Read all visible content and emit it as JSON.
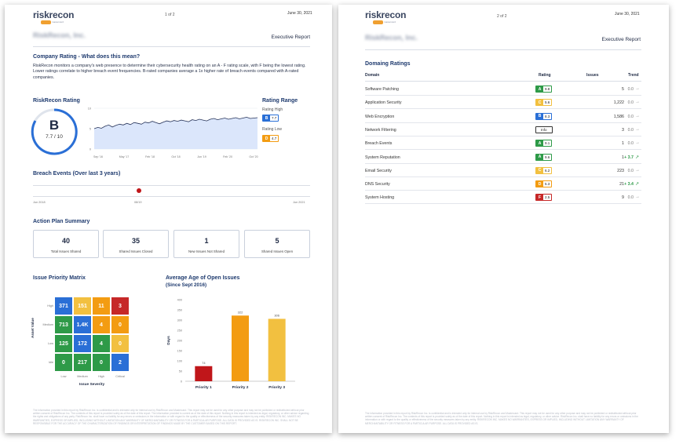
{
  "colors": {
    "navy": "#1e3a6e",
    "grade_a": "#2e9a48",
    "grade_b": "#2a6fd6",
    "grade_c": "#f2c040",
    "grade_d": "#f39c12",
    "grade_f": "#c62828",
    "trend_up": "#2e9a48",
    "breach_dot": "#c0161a"
  },
  "page1": {
    "logo": "riskrecon",
    "logo_sub": "mastercard",
    "page_num": "1 of 2",
    "date": "June 30, 2021",
    "company": "RiskRecon, Inc.",
    "report": "Executive Report",
    "rating_heading": "Company Rating - What does this mean?",
    "rating_paragraph": "RiskRecon monitors a company's web presence to determine their cybersecurity health rating on an A - F rating scale, with F being the lowest rating. Lower ratings correlate to higher breach event frequencies. B-rated companies average a 1x higher rate of breach events compared with A-rated companies.",
    "rr_rating_title": "RiskRecon Rating",
    "grade": "B",
    "score": "7.7 / 10",
    "rating_range_title": "Rating Range",
    "rating_high_label": "Rating High",
    "rating_high_grade": "B",
    "rating_high_value": "7.7",
    "rating_low_label": "Rating Low",
    "rating_low_grade": "D",
    "rating_low_value": "4.7",
    "breach_title": "Breach Events (Over last 3 years)",
    "breach_start": "Jun 2018",
    "breach_mark": "08/19",
    "breach_end": "Jun 2021",
    "action_title": "Action Plan Summary",
    "cards": [
      {
        "num": "40",
        "label": "Total Issues Shared"
      },
      {
        "num": "35",
        "label": "Shared Issues Closed"
      },
      {
        "num": "1",
        "label": "New Issues Not Shared"
      },
      {
        "num": "5",
        "label": "Shared Issues Open"
      }
    ],
    "matrix_title": "Issue Priority Matrix",
    "matrix_ylabel": "Asset Value",
    "matrix_xlabel": "Issue Severity",
    "matrix_rows": [
      "High",
      "Medium",
      "Low",
      "Idle"
    ],
    "matrix_cols": [
      "Low",
      "Medium",
      "High",
      "Critical"
    ],
    "matrix_values": [
      [
        "371",
        "151",
        "11",
        "3"
      ],
      [
        "713",
        "1.4K",
        "4",
        "0"
      ],
      [
        "125",
        "172",
        "4",
        "0"
      ],
      [
        "0",
        "217",
        "0",
        "2"
      ]
    ],
    "matrix_colors": [
      [
        "#2a6fd6",
        "#f2c040",
        "#f39c12",
        "#c62828"
      ],
      [
        "#2e9a48",
        "#2a6fd6",
        "#f39c12",
        "#f39c12"
      ],
      [
        "#2e9a48",
        "#2a6fd6",
        "#2e9a48",
        "#f2c040"
      ],
      [
        "#2e9a48",
        "#2e9a48",
        "#2e9a48",
        "#2a6fd6"
      ]
    ],
    "age_title": "Average Age of Open Issues",
    "age_subtitle": "(Since Sept 2016)",
    "footer_text": "The information provided in this report by RiskRecon Inc. is confidential and is intended only for internal use by RiskRecon and Mastercard. This report may not be used for any other purpose and may not be published or redistributed without prior written consent of RiskRecon Inc. The contents of this report is provided solely as of the date of this report. The information provided is current as of the date of this report. Nothing in this report is intended as legal, regulatory, or other advice regarding the rights and obligations of any party. RiskRecon Inc. shall have no liability for any errors or omissions in the information or with regard to the quality or effectiveness of the security measures taken by any entity. RISKRECON INC. MAKES NO WARRANTIES, EXPRESS OR IMPLIED, INCLUDING WITHOUT LIMITATION ANY WARRANTY OF MERCHANTABILITY OR FITNESS FOR A PARTICULAR PURPOSE. ALL DATA IS PROVIDED AS IS. RISKRECON INC. SHALL NOT BE RESPONSIBLE FOR THE ACCURACY OF THE CHARACTERIZATION OF FINDINGS OR INTERPRETATION OF FINDINGS MADE BY THE CUSTOMER BASED ON THIS REPORT."
  },
  "page2": {
    "logo": "riskrecon",
    "logo_sub": "mastercard",
    "page_num": "2 of 2",
    "date": "June 30, 2021",
    "company": "RiskRecon, Inc.",
    "report": "Executive Report",
    "domains_title": "Domaing Ratings",
    "headers": {
      "domain": "Domain",
      "rating": "Rating",
      "issues": "Issues",
      "trend": "Trend"
    },
    "rows": [
      {
        "domain": "Software Patching",
        "grade": "A",
        "color": "#2e9a48",
        "score": "9.8",
        "issues": "5",
        "trend": "0.0",
        "up": false
      },
      {
        "domain": "Application Security",
        "grade": "C",
        "color": "#f2c040",
        "score": "5.6",
        "issues": "1,222",
        "trend": "0.0",
        "up": false
      },
      {
        "domain": "Web Encryption",
        "grade": "B",
        "color": "#2a6fd6",
        "score": "8.3",
        "issues": "1,586",
        "trend": "0.0",
        "up": false
      },
      {
        "domain": "Network Filtering",
        "grade": "",
        "color": "#ffffff",
        "score": "Info",
        "issues": "3",
        "trend": "0.0",
        "up": false
      },
      {
        "domain": "Breach Events",
        "grade": "A",
        "color": "#2e9a48",
        "score": "9.1",
        "issues": "1",
        "trend": "0.0",
        "up": false
      },
      {
        "domain": "System Reputation",
        "grade": "A",
        "color": "#2e9a48",
        "score": "9.6",
        "issues": "1",
        "trend": "+ 3.7",
        "up": true
      },
      {
        "domain": "Email Security",
        "grade": "C",
        "color": "#f2c040",
        "score": "6.2",
        "issues": "223",
        "trend": "0.0",
        "up": false
      },
      {
        "domain": "DNS Security",
        "grade": "D",
        "color": "#f39c12",
        "score": "5.3",
        "issues": "21",
        "trend": "+ 3.4",
        "up": true
      },
      {
        "domain": "System Hosting",
        "grade": "F",
        "color": "#c62828",
        "score": "2.5",
        "issues": "9",
        "trend": "0.0",
        "up": false
      }
    ],
    "footer_text": "The information provided in this report by RiskRecon Inc. is confidential and is intended only for internal use by RiskRecon and Mastercard. This report may not be used for any other purpose and may not be published or redistributed without prior written consent of RiskRecon Inc. The contents of this report is provided solely as of the date of this report. Nothing in this report is intended as legal, regulatory, or other advice. RiskRecon Inc. shall have no liability for any errors or omissions in the information or with regard to the quality or effectiveness of the security measures taken by any entity. RISKRECON INC. MAKES NO WARRANTIES, EXPRESS OR IMPLIED, INCLUDING WITHOUT LIMITATION ANY WARRANTY OF MERCHANTABILITY OR FITNESS FOR A PARTICULAR PURPOSE. ALL DATA IS PROVIDED AS IS."
  },
  "chart_data": [
    {
      "type": "line",
      "x_ticks": [
        "Sep '16",
        "May '17",
        "Feb '18",
        "Oct '18",
        "Jun '19",
        "Feb '20",
        "Oct '20"
      ],
      "y_ticks": [
        "10",
        "5",
        "0"
      ],
      "ylim": [
        0,
        10
      ],
      "series": [
        {
          "values": [
            5.0,
            5.3,
            5.1,
            5.6,
            5.9,
            5.4,
            5.8,
            6.1,
            5.9,
            6.3,
            6.0,
            6.5,
            6.3,
            6.1,
            6.6,
            6.4,
            6.8,
            6.5,
            6.2,
            6.6,
            6.9,
            6.7,
            7.0,
            6.8,
            7.1,
            6.9,
            6.7,
            7.2,
            7.0,
            7.3,
            7.1,
            6.9,
            7.3,
            7.5,
            7.2,
            7.4,
            7.6,
            7.3,
            7.5,
            7.7,
            7.4,
            7.6,
            7.8,
            7.5,
            7.6,
            7.7
          ]
        }
      ]
    },
    {
      "type": "bar",
      "title": "Average Age of Open Issues",
      "subtitle": "(Since Sept 2016)",
      "ylabel": "Days",
      "categories": [
        "Priority 1",
        "Priority 2",
        "Priority 3"
      ],
      "values": [
        74,
        322,
        306
      ],
      "colors": [
        "#c0161a",
        "#f39c12",
        "#f2c040"
      ],
      "ylim": [
        0,
        400
      ],
      "y_ticks": [
        "400",
        "350",
        "300",
        "250",
        "200",
        "150",
        "100",
        "50",
        "0"
      ]
    }
  ]
}
